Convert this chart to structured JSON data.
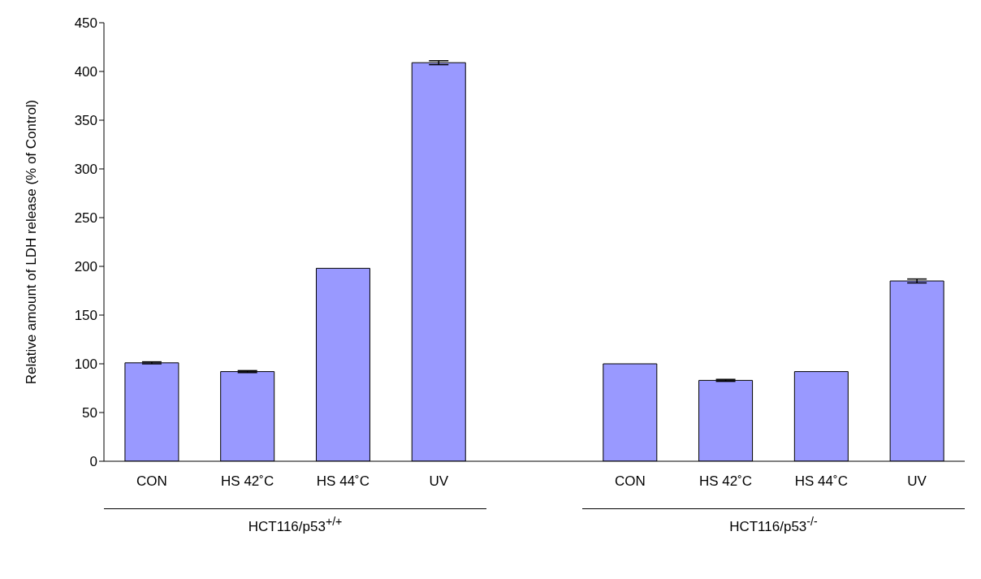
{
  "chart_data": {
    "type": "bar",
    "ylabel": "Relative amount of LDH release (% of Control)",
    "categories": [
      "CON",
      "HS 42˚C",
      "HS 44˚C",
      "UV",
      null,
      "CON",
      "HS 42˚C",
      "HS 44˚C",
      "UV"
    ],
    "values": [
      101,
      92,
      198,
      409,
      null,
      100,
      83,
      92,
      185
    ],
    "errors": [
      1,
      1,
      null,
      2,
      null,
      null,
      1,
      null,
      2
    ],
    "color": "#9999ff",
    "ylim": [
      0,
      450
    ],
    "yticks": [
      0,
      50,
      100,
      150,
      200,
      250,
      300,
      350,
      400,
      450
    ],
    "grid": false,
    "legend": false,
    "annotations": [
      "HCT116/p53$^{+/+}$",
      "HCT116/p53$^{-/-}$"
    ]
  }
}
